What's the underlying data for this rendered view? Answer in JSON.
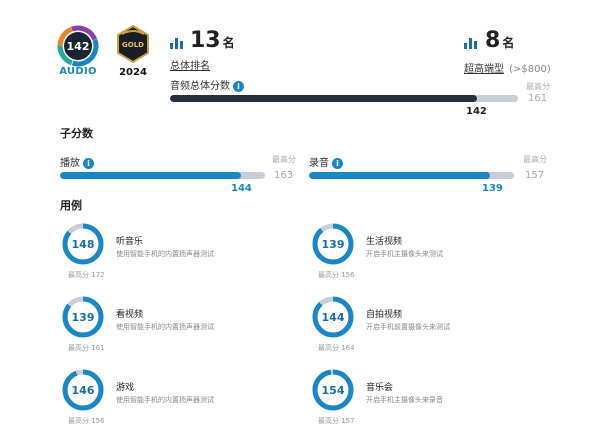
{
  "badges": {
    "audio_score": "142",
    "audio_label": "AUDIO",
    "gold_label": "GOLD",
    "gold_year": "2024"
  },
  "overall_rank": {
    "number": "13",
    "unit": "名",
    "link": "总体排名"
  },
  "segment_rank": {
    "number": "8",
    "unit": "名",
    "link": "超高端型",
    "sub": "(>$800)"
  },
  "total_score": {
    "label": "音频总体分数",
    "max_label": "最高分",
    "max_value": "161",
    "value": "142",
    "fill_fraction": 0.882,
    "color": "#2a2f3e"
  },
  "sub_scores": {
    "title": "子分数",
    "items": [
      {
        "label": "播放",
        "max_label": "最高分",
        "max_value": "163",
        "value": "144",
        "fill_fraction": 0.883,
        "color": "#1a86c4"
      },
      {
        "label": "录音",
        "max_label": "最高分",
        "max_value": "157",
        "value": "139",
        "fill_fraction": 0.885,
        "color": "#1a86c4"
      }
    ]
  },
  "use_cases": {
    "title": "用例",
    "items": [
      {
        "score": "148",
        "title": "听音乐",
        "desc": "使用智能手机的内置扬声器测试",
        "max": "最高分 172",
        "fraction": 0.86
      },
      {
        "score": "139",
        "title": "生活视频",
        "desc": "开启手机主摄像头来测试",
        "max": "最高分 156",
        "fraction": 0.89
      },
      {
        "score": "139",
        "title": "看视频",
        "desc": "使用智能手机的内置扬声器测试",
        "max": "最高分 161",
        "fraction": 0.86
      },
      {
        "score": "144",
        "title": "自拍视频",
        "desc": "开启手机前置摄像头来测试",
        "max": "最高分 164",
        "fraction": 0.88
      },
      {
        "score": "146",
        "title": "游戏",
        "desc": "使用智能手机的内置扬声器测试",
        "max": "最高分 156",
        "fraction": 0.94
      },
      {
        "score": "154",
        "title": "音乐会",
        "desc": "开启手机主摄像头来录音",
        "max": "最高分 157",
        "fraction": 0.98
      }
    ]
  },
  "colors": {
    "accent": "#1a86c4",
    "dark_bar": "#2a2f3e",
    "track": "#c9cdd8",
    "gold": "#c9a24a"
  }
}
